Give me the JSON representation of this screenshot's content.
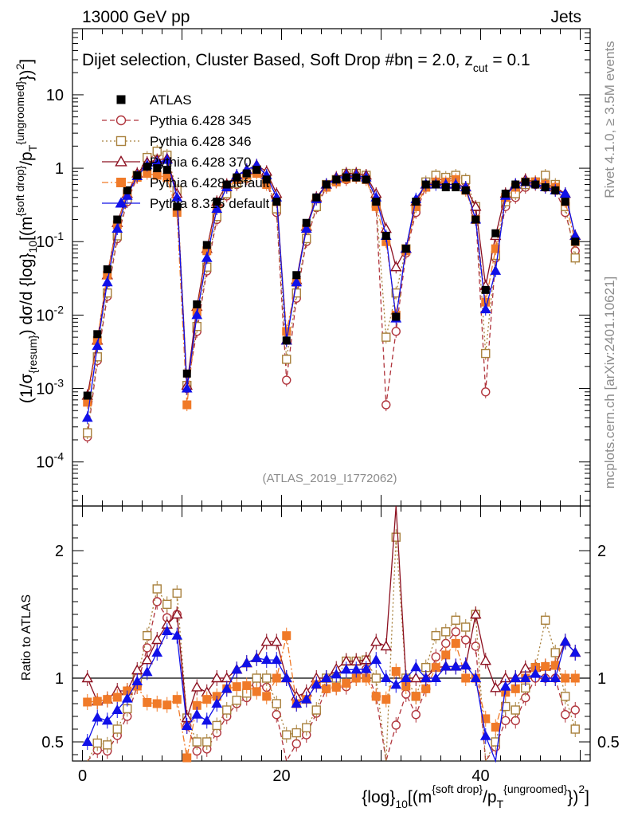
{
  "header": {
    "left": "13000 GeV pp",
    "right": "Jets"
  },
  "side_labels": {
    "rivet": "Rivet 4.1.0, ≥ 3.5M events",
    "mcplots": "mcplots.cern.ch [arXiv:2401.10621]"
  },
  "chart_data": {
    "type": "scatter",
    "title": "Dijet selection, Cluster Based, Soft Drop #b",
    "title_extra": {
      "eta": "η = 2.0, z",
      "sub": "cut",
      "val": " = 0.1"
    },
    "analysis_id": "(ATLAS_2019_I1772062)",
    "xlabel": {
      "pre": "{log}",
      "sub": "10",
      "mid": "[(m",
      "sup": "{soft drop}",
      "mid2": "/p",
      "sub2": "T",
      "sup2": "{ungroomed}",
      "post": "})",
      "sq": "2",
      "end": "]"
    },
    "ylabel": {
      "a": "(1/σ",
      "b": "{resum}",
      "c": ") dσ/d {log}",
      "d": "10",
      "e": "[(m",
      "f": "{soft drop}",
      "g": "/p",
      "h": "T",
      "i": "{ungroomed}",
      "j": "})",
      "k": "2",
      "l": "]"
    },
    "ratio_ylabel": "Ratio to ATLAS",
    "xlim": [
      -1,
      51
    ],
    "ylim_main_log10": [
      -4.6,
      1.9
    ],
    "ylim_ratio": [
      0.35,
      2.35
    ],
    "x_ticks": [
      0,
      20,
      40
    ],
    "main_y_ticks": [
      "10^-4",
      "10^-3",
      "10^-2",
      "10^-1",
      "1",
      "10"
    ],
    "main_y_tick_labels": [
      {
        "exp": "-4",
        "base": "10"
      },
      {
        "exp": "-3",
        "base": "10"
      },
      {
        "exp": "-2",
        "base": "10"
      },
      {
        "exp": "-1",
        "base": "10"
      },
      {
        "plain": "1"
      },
      {
        "plain": "10"
      }
    ],
    "ratio_y_ticks": [
      "0.5",
      "1",
      "2"
    ],
    "bins": [
      0.5,
      1.5,
      2.5,
      3.5,
      4.5,
      5.5,
      6.5,
      7.5,
      8.5,
      9.5,
      10.5,
      11.5,
      12.5,
      13.5,
      14.5,
      15.5,
      16.5,
      17.5,
      18.5,
      19.5,
      20.5,
      21.5,
      22.5,
      23.5,
      24.5,
      25.5,
      26.5,
      27.5,
      28.5,
      29.5,
      30.5,
      31.5,
      32.5,
      33.5,
      34.5,
      35.5,
      36.5,
      37.5,
      38.5,
      39.5,
      40.5,
      41.5,
      42.5,
      43.5,
      44.5,
      45.5,
      46.5,
      47.5,
      48.5,
      49.5
    ],
    "data": {
      "name": "ATLAS",
      "values": [
        0.0008,
        0.0055,
        0.042,
        0.2,
        0.5,
        0.8,
        1.05,
        1.0,
        0.95,
        0.3,
        0.0016,
        0.014,
        0.09,
        0.35,
        0.6,
        0.75,
        0.85,
        0.95,
        0.7,
        0.35,
        0.0045,
        0.035,
        0.18,
        0.4,
        0.6,
        0.7,
        0.75,
        0.75,
        0.7,
        0.35,
        0.12,
        0.0095,
        0.08,
        0.35,
        0.6,
        0.6,
        0.55,
        0.55,
        0.5,
        0.2,
        0.022,
        0.13,
        0.45,
        0.6,
        0.65,
        0.6,
        0.55,
        0.5,
        0.35,
        0.1
      ]
    },
    "series": [
      {
        "name": "Pythia 6.428 345",
        "color": "#b0343c",
        "marker": "open-circle",
        "line": "dashed",
        "values": [
          0.00022,
          0.0024,
          0.018,
          0.11,
          0.35,
          0.75,
          1.3,
          1.6,
          1.4,
          0.45,
          0.001,
          0.006,
          0.04,
          0.2,
          0.42,
          0.6,
          0.72,
          0.9,
          0.65,
          0.25,
          0.0013,
          0.017,
          0.1,
          0.29,
          0.55,
          0.65,
          0.7,
          0.75,
          0.75,
          0.3,
          0.0006,
          0.006,
          0.07,
          0.25,
          0.55,
          0.7,
          0.7,
          0.75,
          0.65,
          0.25,
          0.0009,
          0.06,
          0.3,
          0.4,
          0.55,
          0.6,
          0.55,
          0.5,
          0.25,
          0.075
        ]
      },
      {
        "name": "Pythia 6.428 346",
        "color": "#a8803c",
        "marker": "open-square",
        "line": "dotted",
        "values": [
          0.00025,
          0.0027,
          0.02,
          0.12,
          0.38,
          0.8,
          1.4,
          1.7,
          1.5,
          0.5,
          0.0011,
          0.007,
          0.045,
          0.22,
          0.45,
          0.62,
          0.75,
          0.95,
          0.7,
          0.28,
          0.0025,
          0.02,
          0.11,
          0.3,
          0.6,
          0.7,
          0.85,
          0.85,
          0.8,
          0.35,
          0.005,
          0.02,
          0.08,
          0.3,
          0.65,
          0.8,
          0.75,
          0.8,
          0.7,
          0.3,
          0.003,
          0.065,
          0.35,
          0.45,
          0.6,
          0.65,
          0.8,
          0.6,
          0.3,
          0.06
        ]
      },
      {
        "name": "Pythia 6.428 370",
        "color": "#8c1020",
        "marker": "open-triangle",
        "line": "solid",
        "values": [
          0.0008,
          0.0045,
          0.035,
          0.18,
          0.45,
          0.85,
          1.2,
          1.3,
          1.35,
          0.45,
          0.0011,
          0.013,
          0.08,
          0.35,
          0.6,
          0.8,
          0.95,
          1.1,
          0.9,
          0.45,
          0.0045,
          0.03,
          0.16,
          0.4,
          0.6,
          0.75,
          0.85,
          0.85,
          0.8,
          0.45,
          0.15,
          0.045,
          0.08,
          0.35,
          0.6,
          0.65,
          0.6,
          0.6,
          0.55,
          0.3,
          0.025,
          0.12,
          0.45,
          0.6,
          0.7,
          0.65,
          0.6,
          0.55,
          0.45,
          0.12
        ]
      },
      {
        "name": "Pythia 6.428 default",
        "color": "#f07a28",
        "marker": "filled-square",
        "line": "dashdot",
        "values": [
          0.00065,
          0.0045,
          0.035,
          0.17,
          0.45,
          0.75,
          0.85,
          0.8,
          0.75,
          0.25,
          0.0006,
          0.011,
          0.075,
          0.3,
          0.55,
          0.7,
          0.8,
          0.85,
          0.6,
          0.35,
          0.006,
          0.028,
          0.15,
          0.38,
          0.55,
          0.65,
          0.72,
          0.75,
          0.7,
          0.3,
          0.1,
          0.01,
          0.075,
          0.3,
          0.55,
          0.65,
          0.65,
          0.7,
          0.5,
          0.2,
          0.015,
          0.08,
          0.4,
          0.55,
          0.65,
          0.65,
          0.6,
          0.55,
          0.35,
          0.1
        ]
      },
      {
        "name": "Pythia 8.315 default",
        "color": "#1010e8",
        "marker": "filled-triangle",
        "line": "solid",
        "values": [
          0.0004,
          0.0038,
          0.028,
          0.15,
          0.42,
          0.78,
          1.1,
          1.2,
          1.3,
          0.4,
          0.001,
          0.01,
          0.06,
          0.28,
          0.55,
          0.8,
          0.95,
          1.1,
          0.8,
          0.4,
          0.0045,
          0.028,
          0.15,
          0.38,
          0.6,
          0.72,
          0.8,
          0.8,
          0.75,
          0.4,
          0.12,
          0.009,
          0.08,
          0.38,
          0.6,
          0.6,
          0.6,
          0.6,
          0.55,
          0.2,
          0.012,
          0.04,
          0.42,
          0.6,
          0.65,
          0.62,
          0.55,
          0.5,
          0.45,
          0.12
        ]
      }
    ]
  }
}
